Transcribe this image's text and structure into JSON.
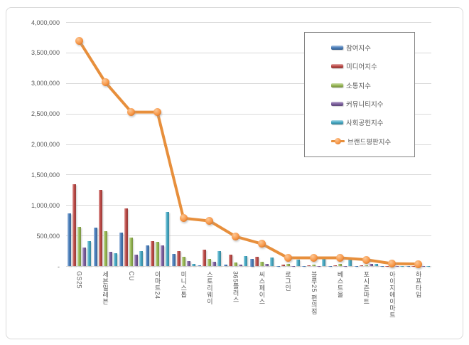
{
  "window": {
    "background": "#ffffff",
    "frame_border_color": "#d9d9d9"
  },
  "colors": {
    "gridline": "#d9d9d9",
    "axis_text": "#595959",
    "legend_border": "#848484",
    "bar_blue": "#4a7ebb",
    "bar_red": "#be4b48",
    "bar_green": "#98b954",
    "bar_purple": "#7d60a0",
    "bar_cyan": "#46aac5",
    "line_orange": "#e78f3c"
  },
  "chart_data": {
    "type": "combo-bar-line",
    "categories": [
      "GS25",
      "세븐일레븐",
      "CU",
      "이마트24",
      "미니스톱",
      "스토리웨이",
      "365플러스",
      "씨스페이스",
      "로그인",
      "블루25 편의점",
      "베스트올",
      "포시즌마트",
      "아이지에이마트",
      "하프타임"
    ],
    "series": [
      {
        "name": "참여지수",
        "type": "bar",
        "color": "#4a7ebb",
        "values": [
          870000,
          630000,
          550000,
          340000,
          200000,
          15000,
          30000,
          125000,
          10000,
          10000,
          10000,
          8000,
          5000,
          5000
        ]
      },
      {
        "name": "미디어지수",
        "type": "bar",
        "color": "#be4b48",
        "values": [
          1350000,
          1255000,
          950000,
          410000,
          255000,
          270000,
          190000,
          160000,
          25000,
          20000,
          20000,
          15000,
          8000,
          5000
        ]
      },
      {
        "name": "소통지수",
        "type": "bar",
        "color": "#98b954",
        "values": [
          650000,
          580000,
          475000,
          400000,
          160000,
          120000,
          60000,
          75000,
          45000,
          30000,
          35000,
          12000,
          8000,
          5000
        ]
      },
      {
        "name": "커뮤니티지수",
        "type": "bar",
        "color": "#7d60a0",
        "values": [
          310000,
          240000,
          190000,
          345000,
          90000,
          75000,
          25000,
          35000,
          10000,
          8000,
          8000,
          40000,
          5000,
          4000
        ]
      },
      {
        "name": "사회공헌지수",
        "type": "bar",
        "color": "#46aac5",
        "values": [
          410000,
          220000,
          255000,
          890000,
          40000,
          255000,
          170000,
          140000,
          105000,
          160000,
          140000,
          35000,
          10000,
          10000
        ]
      },
      {
        "name": "브랜드평판지수",
        "type": "line",
        "color": "#e78f3c",
        "marker_color": "#f79646",
        "values": [
          3700000,
          3020000,
          2530000,
          2530000,
          790000,
          745000,
          490000,
          370000,
          140000,
          140000,
          140000,
          110000,
          45000,
          40000
        ]
      }
    ],
    "ylim": [
      0,
      4000000
    ],
    "ytick_step": 500000,
    "ytick_labels": [
      "-",
      "500,000",
      "1,000,000",
      "1,500,000",
      "2,000,000",
      "2,500,000",
      "3,000,000",
      "3,500,000",
      "4,000,000"
    ],
    "grid": true,
    "legend_position": "inside-top-right",
    "x_labels_orientation": "vertical"
  }
}
